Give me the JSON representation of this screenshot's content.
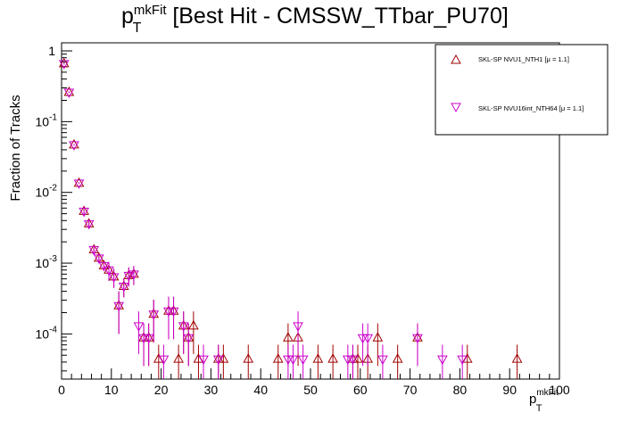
{
  "chart_data": {
    "type": "scatter",
    "title": "p_T^mkFit [Best Hit - CMSSW_TTbar_PU70]",
    "title_parts": {
      "p": "p",
      "sup": "mkFit",
      "sub": "T",
      "rest": "[Best Hit - CMSSW_TTbar_PU70]"
    },
    "xlabel_parts": {
      "p": "p",
      "sup": "mkFit",
      "sub": "T"
    },
    "ylabel": "Fraction of Tracks",
    "xlim": [
      0,
      100
    ],
    "ylim": [
      2.3e-05,
      1.3
    ],
    "yscale": "log",
    "x_ticks": [
      "0",
      "10",
      "20",
      "30",
      "40",
      "50",
      "60",
      "70",
      "80",
      "90",
      "100"
    ],
    "y_ticks": [
      {
        "base": "10",
        "exp": "-4"
      },
      {
        "base": "10",
        "exp": "-3"
      },
      {
        "base": "10",
        "exp": "-2"
      },
      {
        "base": "10",
        "exp": "-1"
      },
      {
        "base": "1",
        "exp": ""
      }
    ],
    "grid": false,
    "legend_position": "top-right",
    "series": [
      {
        "name": "SKL-SP NVU1_NTH1 [μ =  1.1]",
        "color": "#a00000",
        "marker": "triangle-up",
        "points": [
          [
            0.5,
            0.66
          ],
          [
            1.5,
            0.26
          ],
          [
            2.5,
            0.047
          ],
          [
            3.5,
            0.0135
          ],
          [
            4.5,
            0.0054
          ],
          [
            5.5,
            0.0036
          ],
          [
            6.5,
            0.00155
          ],
          [
            7.5,
            0.00118
          ],
          [
            8.5,
            0.00092
          ],
          [
            9.5,
            0.0008
          ],
          [
            10.5,
            0.00064
          ],
          [
            11.5,
            0.00025
          ],
          [
            12.5,
            0.00047
          ],
          [
            13.5,
            0.00067
          ],
          [
            14.5,
            0.0007
          ],
          [
            16.5,
            8.8e-05
          ],
          [
            17.5,
            8.8e-05
          ],
          [
            18.5,
            0.00019
          ],
          [
            19.5,
            4.4e-05
          ],
          [
            21.5,
            0.00021
          ],
          [
            22.5,
            0.00021
          ],
          [
            23.5,
            4.4e-05
          ],
          [
            24.5,
            0.00013
          ],
          [
            25.5,
            8.8e-05
          ],
          [
            26.5,
            0.00013
          ],
          [
            27.5,
            4.4e-05
          ],
          [
            31.5,
            4.4e-05
          ],
          [
            32.5,
            4.4e-05
          ],
          [
            37.5,
            4.4e-05
          ],
          [
            43.5,
            4.4e-05
          ],
          [
            45.5,
            8.8e-05
          ],
          [
            47.5,
            8.8e-05
          ],
          [
            51.5,
            4.4e-05
          ],
          [
            54.5,
            4.4e-05
          ],
          [
            58.5,
            4.4e-05
          ],
          [
            59.5,
            4.4e-05
          ],
          [
            61.5,
            4.4e-05
          ],
          [
            63.5,
            8.8e-05
          ],
          [
            67.5,
            4.4e-05
          ],
          [
            71.5,
            8.8e-05
          ],
          [
            81.5,
            4.4e-05
          ],
          [
            91.5,
            4.4e-05
          ]
        ]
      },
      {
        "name": "SKL-SP NVU16int_NTH64 [μ =  1.1]",
        "color": "#cc00cc",
        "marker": "triangle-down",
        "points": [
          [
            0.5,
            0.66
          ],
          [
            1.5,
            0.26
          ],
          [
            2.5,
            0.047
          ],
          [
            3.5,
            0.0135
          ],
          [
            4.5,
            0.0054
          ],
          [
            5.5,
            0.0036
          ],
          [
            6.5,
            0.00155
          ],
          [
            7.5,
            0.00118
          ],
          [
            8.5,
            0.00092
          ],
          [
            9.5,
            0.0008
          ],
          [
            10.5,
            0.00064
          ],
          [
            11.5,
            0.00025
          ],
          [
            12.5,
            0.00047
          ],
          [
            13.5,
            0.00067
          ],
          [
            14.5,
            0.0007
          ],
          [
            15.5,
            0.00013
          ],
          [
            16.5,
            8.8e-05
          ],
          [
            17.5,
            8.8e-05
          ],
          [
            18.5,
            0.00019
          ],
          [
            20.5,
            4.4e-05
          ],
          [
            21.5,
            0.00021
          ],
          [
            22.5,
            0.00021
          ],
          [
            24.5,
            0.00013
          ],
          [
            25.5,
            8.8e-05
          ],
          [
            28.5,
            4.4e-05
          ],
          [
            31.5,
            4.4e-05
          ],
          [
            45.5,
            4.4e-05
          ],
          [
            46.5,
            4.4e-05
          ],
          [
            47.5,
            0.00013
          ],
          [
            48.5,
            4.4e-05
          ],
          [
            57.5,
            4.4e-05
          ],
          [
            58.5,
            4.4e-05
          ],
          [
            60.5,
            8.8e-05
          ],
          [
            61.5,
            8.8e-05
          ],
          [
            64.5,
            4.4e-05
          ],
          [
            71.5,
            8.8e-05
          ],
          [
            76.5,
            4.4e-05
          ],
          [
            80.5,
            4.4e-05
          ]
        ]
      }
    ]
  }
}
